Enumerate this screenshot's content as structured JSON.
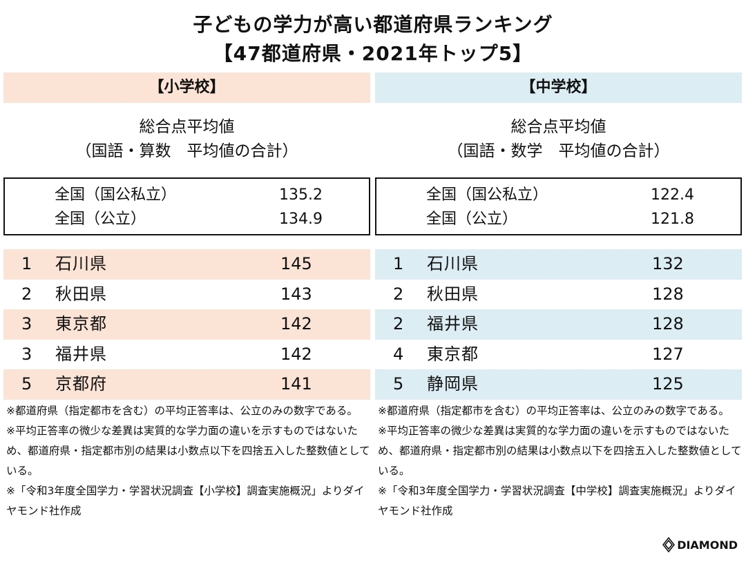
{
  "title": "子どもの学力が高い都道府県ランキング",
  "subtitle": "【47都道府県・2021年トップ5】",
  "colors": {
    "elementary": "#fbe3d5",
    "junior_high": "#dceef3"
  },
  "elementary": {
    "header": "【小学校】",
    "metric_line1": "総合点平均値",
    "metric_line2": "（国語・算数　平均値の合計）",
    "national": [
      {
        "label": "全国（国公私立）",
        "value": "135.2"
      },
      {
        "label": "全国（公立）",
        "value": "134.9"
      }
    ],
    "rankings": [
      {
        "rank": "1",
        "pref": "石川県",
        "score": "145"
      },
      {
        "rank": "2",
        "pref": "秋田県",
        "score": "143"
      },
      {
        "rank": "3",
        "pref": "東京都",
        "score": "142"
      },
      {
        "rank": "3",
        "pref": "福井県",
        "score": "142"
      },
      {
        "rank": "5",
        "pref": "京都府",
        "score": "141"
      }
    ],
    "notes": [
      "※都道府県（指定都市を含む）の平均正答率は、公立のみの数字である。",
      "※平均正答率の微少な差異は実質的な学力面の違いを示すものではないため、都道府県・指定都市別の結果は小数点以下を四捨五入した整数値としている。",
      "※「令和3年度全国学力・学習状況調査【小学校】調査実施概況」よりダイヤモンド社作成"
    ]
  },
  "junior_high": {
    "header": "【中学校】",
    "metric_line1": "総合点平均値",
    "metric_line2": "（国語・数学　平均値の合計）",
    "national": [
      {
        "label": "全国（国公私立）",
        "value": "122.4"
      },
      {
        "label": "全国（公立）",
        "value": "121.8"
      }
    ],
    "rankings": [
      {
        "rank": "1",
        "pref": "石川県",
        "score": "132"
      },
      {
        "rank": "2",
        "pref": "秋田県",
        "score": "128"
      },
      {
        "rank": "2",
        "pref": "福井県",
        "score": "128"
      },
      {
        "rank": "4",
        "pref": "東京都",
        "score": "127"
      },
      {
        "rank": "5",
        "pref": "静岡県",
        "score": "125"
      }
    ],
    "notes": [
      "※都道府県（指定都市を含む）の平均正答率は、公立のみの数字である。",
      "※平均正答率の微少な差異は実質的な学力面の違いを示すものではないため、都道府県・指定都市別の結果は小数点以下を四捨五入した整数値としている。",
      "※「令和3年度全国学力・学習状況調査【中学校】調査実施概況」よりダイヤモンド社作成"
    ]
  },
  "logo": "DIAMOND"
}
